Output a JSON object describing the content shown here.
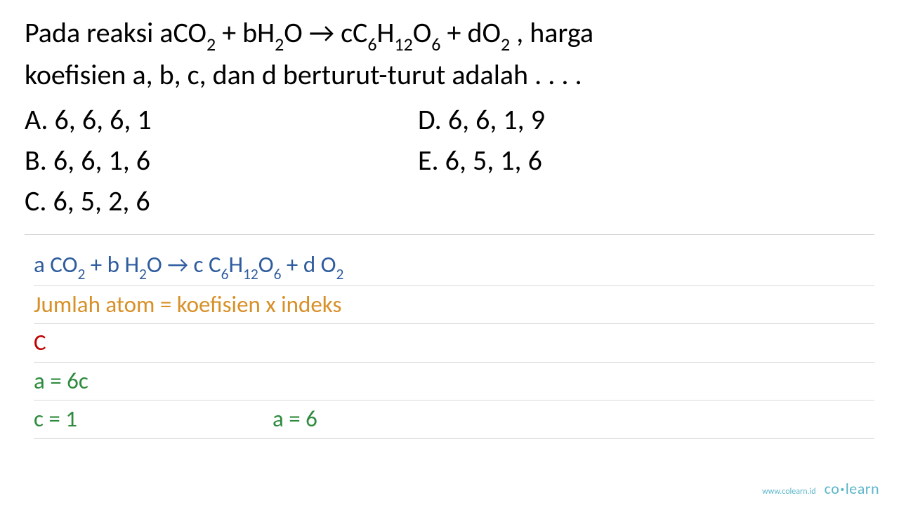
{
  "question": {
    "line1_pre": "Pada reaksi aCO",
    "line1_mid1": " + bH",
    "line1_mid2": "O → cC",
    "line1_mid3": "H",
    "line1_mid4": "O",
    "line1_mid5": " + dO",
    "line1_post": " , harga",
    "line2": "koefisien a, b, c, dan d berturut-turut adalah . . . .",
    "subs": {
      "co2": "2",
      "h2": "2",
      "c6": "6",
      "h12": "12",
      "o6": "6",
      "o2": "2"
    }
  },
  "options": {
    "A": "A.  6, 6, 6, 1",
    "B": "B.  6, 6, 1, 6",
    "C": "C.  6, 5, 2, 6",
    "D": "D.  6, 6, 1, 9",
    "E": "E.  6, 5, 1, 6"
  },
  "work": {
    "eq_pre": "a CO",
    "eq_m1": " + b H",
    "eq_m2": "O → c C",
    "eq_m3": "H",
    "eq_m4": "O",
    "eq_m5": " + d O",
    "rule": "Jumlah atom = koefisien x indeks",
    "elem": "C",
    "step1": "a = 6c",
    "step2a": "c = 1",
    "step2b": "a = 6",
    "subs": {
      "co2": "2",
      "h2": "2",
      "c6": "6",
      "h12": "12",
      "o6": "6",
      "o2": "2"
    }
  },
  "footer": {
    "url": "www.colearn.id",
    "logo_a": "co",
    "logo_b": "learn"
  },
  "colors": {
    "text": "#000000",
    "blue": "#2e5c9e",
    "orange": "#d89028",
    "red": "#c00000",
    "green": "#2e8b3e",
    "divider": "#d0d0d0",
    "footer": "#5bb5c9",
    "background": "#ffffff"
  },
  "fontsize": {
    "question": 40,
    "work": 33,
    "footer_url": 12,
    "footer_logo": 22
  }
}
